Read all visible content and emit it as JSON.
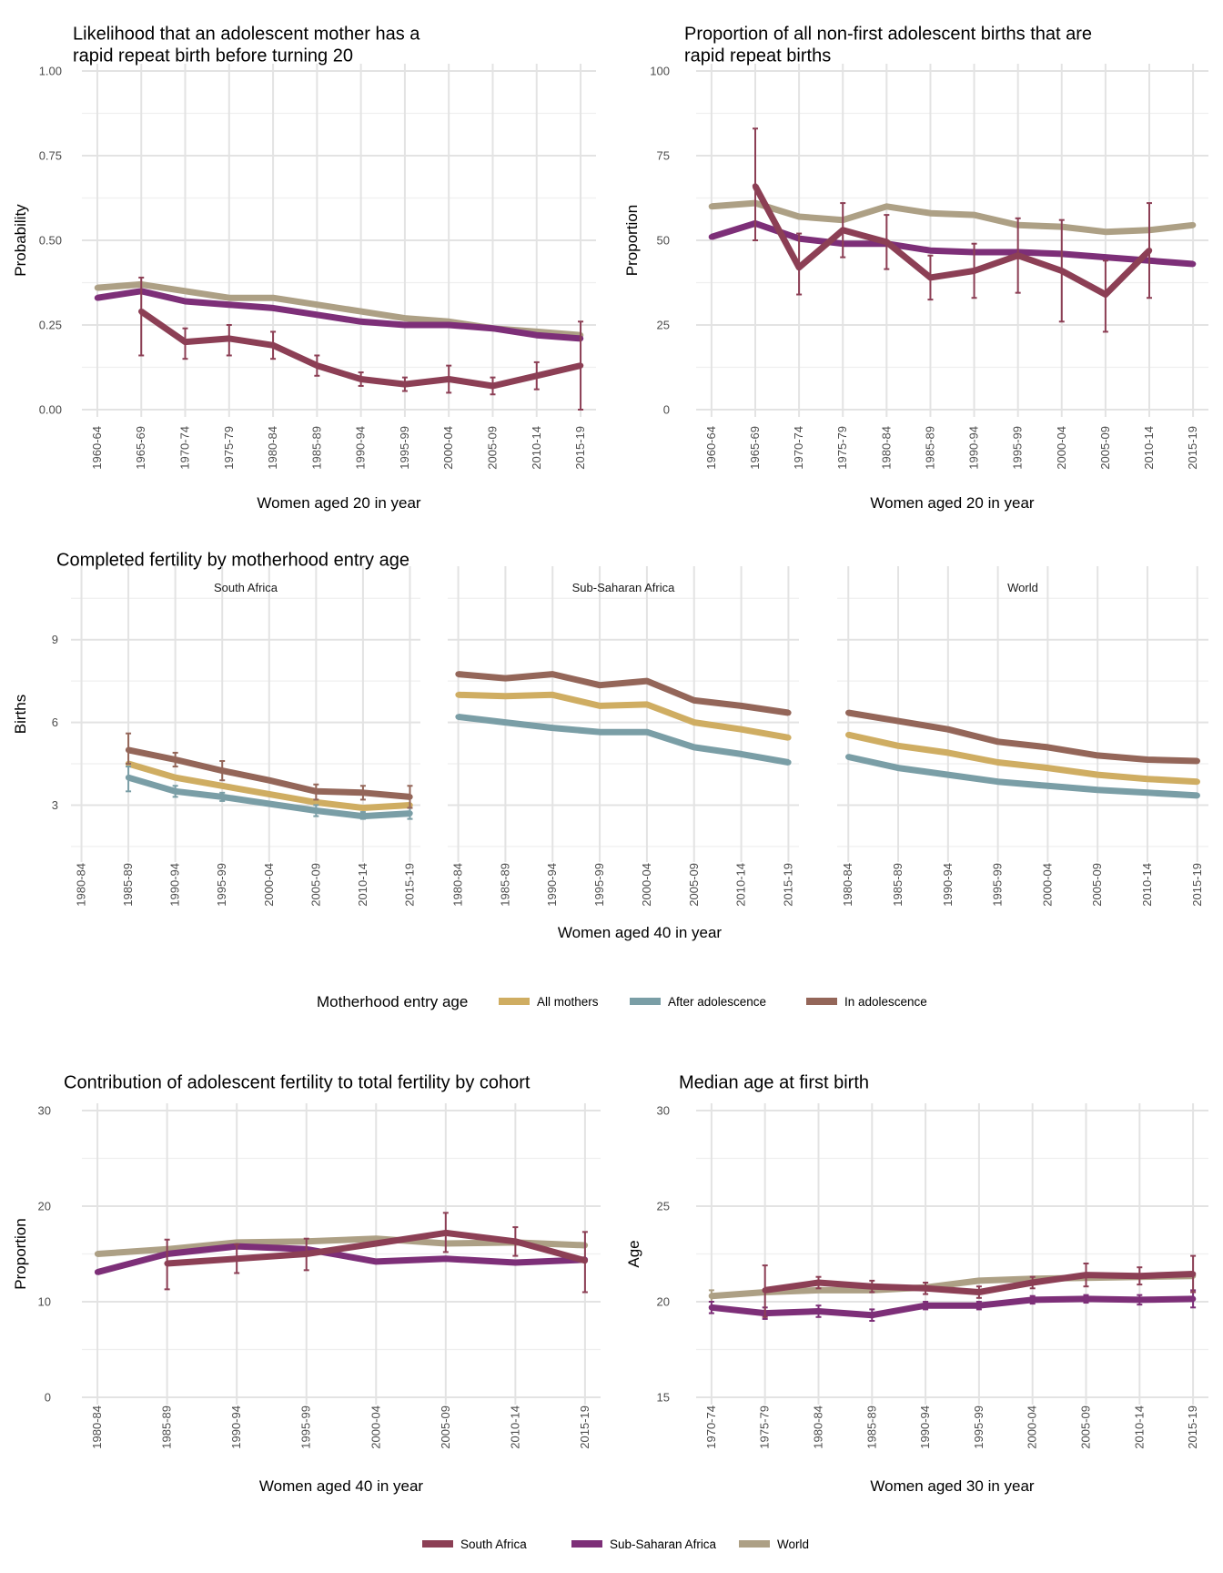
{
  "colors": {
    "south_africa": "#8c3f55",
    "sub_saharan_africa": "#7d2f78",
    "world": "#ada085",
    "all_mothers": "#cfad62",
    "after_adolescence": "#7a9ea6",
    "in_adolescence": "#946659"
  },
  "region_legend": {
    "items": [
      {
        "key": "south_africa",
        "label": "South Africa"
      },
      {
        "key": "sub_saharan_africa",
        "label": "Sub-Saharan Africa"
      },
      {
        "key": "world",
        "label": "World"
      }
    ]
  },
  "motherhood_legend": {
    "title": "Motherhood entry age",
    "items": [
      {
        "key": "all_mothers",
        "label": "All mothers"
      },
      {
        "key": "after_adolescence",
        "label": "After adolescence"
      },
      {
        "key": "in_adolescence",
        "label": "In adolescence"
      }
    ]
  },
  "chart_data": [
    {
      "id": "rapid_repeat_probability",
      "type": "line",
      "title": "Likelihood that an adolescent mother has a\nrapid repeat birth before turning 20",
      "xlabel": "Women aged 20 in year",
      "ylabel": "Probability",
      "ylim": [
        0,
        1
      ],
      "yticks": [
        "0.00",
        "0.25",
        "0.50",
        "0.75",
        "1.00"
      ],
      "ytick_values": [
        0,
        0.25,
        0.5,
        0.75,
        1
      ],
      "categories": [
        "1960-64",
        "1965-69",
        "1970-74",
        "1975-79",
        "1980-84",
        "1985-89",
        "1990-94",
        "1995-99",
        "2000-04",
        "2005-09",
        "2010-14",
        "2015-19"
      ],
      "grid": true,
      "series": [
        {
          "name": "World",
          "color_key": "world",
          "values": [
            0.36,
            0.37,
            0.35,
            0.33,
            0.33,
            0.31,
            0.29,
            0.27,
            0.26,
            0.24,
            0.23,
            0.22
          ]
        },
        {
          "name": "Sub-Saharan Africa",
          "color_key": "sub_saharan_africa",
          "values": [
            0.33,
            0.35,
            0.32,
            0.31,
            0.3,
            0.28,
            0.26,
            0.25,
            0.25,
            0.24,
            0.22,
            0.21
          ]
        },
        {
          "name": "South Africa",
          "color_key": "south_africa",
          "values": [
            null,
            0.29,
            0.2,
            0.21,
            0.19,
            0.13,
            0.09,
            0.075,
            0.09,
            0.07,
            0.1,
            0.13
          ],
          "error_low": [
            null,
            0.16,
            0.15,
            0.16,
            0.15,
            0.1,
            0.07,
            0.055,
            0.05,
            0.045,
            0.06,
            0.0
          ],
          "error_high": [
            null,
            0.39,
            0.24,
            0.25,
            0.23,
            0.16,
            0.11,
            0.095,
            0.13,
            0.095,
            0.14,
            0.26
          ]
        }
      ]
    },
    {
      "id": "rapid_repeat_proportion",
      "type": "line",
      "title": "Proportion of all non-first adolescent births that are\nrapid repeat births",
      "xlabel": "Women aged 20 in year",
      "ylabel": "Proportion",
      "ylim": [
        0,
        100
      ],
      "yticks": [
        "0",
        "25",
        "50",
        "75",
        "100"
      ],
      "ytick_values": [
        0,
        25,
        50,
        75,
        100
      ],
      "categories": [
        "1960-64",
        "1965-69",
        "1970-74",
        "1975-79",
        "1980-84",
        "1985-89",
        "1990-94",
        "1995-99",
        "2000-04",
        "2005-09",
        "2010-14",
        "2015-19"
      ],
      "grid": true,
      "series": [
        {
          "name": "World",
          "color_key": "world",
          "values": [
            60,
            61,
            57,
            56,
            60,
            58,
            57.5,
            54.5,
            54,
            52.5,
            53,
            54.5
          ]
        },
        {
          "name": "Sub-Saharan Africa",
          "color_key": "sub_saharan_africa",
          "values": [
            51,
            55,
            50.5,
            49,
            49,
            47,
            46.5,
            46.5,
            46,
            45,
            44,
            43
          ]
        },
        {
          "name": "South Africa",
          "color_key": "south_africa",
          "values": [
            null,
            66,
            42,
            53,
            49.5,
            39,
            41,
            45.5,
            41,
            34,
            47,
            null
          ],
          "error_low": [
            null,
            50,
            34,
            45,
            41.5,
            32.5,
            33,
            34.5,
            26,
            23,
            33,
            null
          ],
          "error_high": [
            null,
            83,
            52,
            61,
            57.5,
            45.5,
            49,
            56.5,
            56,
            44,
            61,
            null
          ]
        }
      ]
    },
    {
      "id": "completed_fertility",
      "type": "line",
      "title": "Completed fertility by motherhood entry age",
      "xlabel": "Women aged 40 in year",
      "ylabel": "Births",
      "ylim": [
        1.2,
        11.4
      ],
      "yticks": [
        "3",
        "6",
        "9"
      ],
      "ytick_values": [
        3,
        6,
        9
      ],
      "categories": [
        "1980-84",
        "1985-89",
        "1990-94",
        "1995-99",
        "2000-04",
        "2005-09",
        "2010-14",
        "2015-19"
      ],
      "grid": true,
      "legend": "bottom",
      "facets": [
        {
          "name": "South Africa",
          "series": [
            {
              "name": "All mothers",
              "color_key": "all_mothers",
              "values": [
                null,
                4.5,
                4.0,
                3.7,
                3.4,
                3.1,
                2.9,
                3.0
              ]
            },
            {
              "name": "After adolescence",
              "color_key": "after_adolescence",
              "values": [
                null,
                4.0,
                3.5,
                3.3,
                3.05,
                2.8,
                2.6,
                2.7
              ],
              "error_low": [
                null,
                3.5,
                3.3,
                3.15,
                null,
                2.6,
                2.5,
                2.5
              ],
              "error_high": [
                null,
                4.4,
                3.7,
                3.45,
                null,
                3.0,
                2.75,
                2.9
              ]
            },
            {
              "name": "In adolescence",
              "color_key": "in_adolescence",
              "values": [
                null,
                5.0,
                4.65,
                4.25,
                3.9,
                3.5,
                3.45,
                3.3
              ],
              "error_low": [
                null,
                4.5,
                4.4,
                3.9,
                null,
                3.2,
                3.2,
                2.9
              ],
              "error_high": [
                null,
                5.6,
                4.9,
                4.6,
                null,
                3.75,
                3.7,
                3.7
              ]
            }
          ]
        },
        {
          "name": "Sub-Saharan Africa",
          "series": [
            {
              "name": "All mothers",
              "color_key": "all_mothers",
              "values": [
                7.0,
                6.95,
                7.0,
                6.6,
                6.65,
                6.0,
                5.75,
                5.45
              ]
            },
            {
              "name": "After adolescence",
              "color_key": "after_adolescence",
              "values": [
                6.2,
                6.0,
                5.8,
                5.65,
                5.65,
                5.1,
                4.85,
                4.55
              ]
            },
            {
              "name": "In adolescence",
              "color_key": "in_adolescence",
              "values": [
                7.75,
                7.6,
                7.75,
                7.35,
                7.5,
                6.8,
                6.6,
                6.35
              ]
            }
          ]
        },
        {
          "name": "World",
          "series": [
            {
              "name": "All mothers",
              "color_key": "all_mothers",
              "values": [
                5.55,
                5.15,
                4.9,
                4.55,
                4.35,
                4.1,
                3.95,
                3.85
              ]
            },
            {
              "name": "After adolescence",
              "color_key": "after_adolescence",
              "values": [
                4.75,
                4.35,
                4.1,
                3.85,
                3.7,
                3.55,
                3.45,
                3.35
              ]
            },
            {
              "name": "In adolescence",
              "color_key": "in_adolescence",
              "values": [
                6.35,
                6.05,
                5.75,
                5.3,
                5.1,
                4.8,
                4.65,
                4.6
              ]
            }
          ]
        }
      ]
    },
    {
      "id": "adolescent_contribution",
      "type": "line",
      "title": "Contribution of adolescent fertility to total fertility by cohort",
      "xlabel": "Women aged 40 in year",
      "ylabel": "Proportion",
      "ylim": [
        0,
        30
      ],
      "yticks": [
        "0",
        "10",
        "20",
        "30"
      ],
      "ytick_values": [
        0,
        10,
        20,
        30
      ],
      "categories": [
        "1980-84",
        "1985-89",
        "1990-94",
        "1995-99",
        "2000-04",
        "2005-09",
        "2010-14",
        "2015-19"
      ],
      "grid": true,
      "series": [
        {
          "name": "World",
          "color_key": "world",
          "values": [
            15.0,
            15.5,
            16.2,
            16.3,
            16.6,
            16.1,
            16.2,
            15.9
          ]
        },
        {
          "name": "Sub-Saharan Africa",
          "color_key": "sub_saharan_africa",
          "values": [
            13.1,
            15.0,
            15.8,
            15.5,
            14.2,
            14.5,
            14.1,
            14.4
          ]
        },
        {
          "name": "South Africa",
          "color_key": "south_africa",
          "values": [
            null,
            14.0,
            14.5,
            15.0,
            16.1,
            17.2,
            16.3,
            14.3
          ],
          "error_low": [
            null,
            11.3,
            13.0,
            13.3,
            null,
            15.2,
            14.8,
            11.0
          ],
          "error_high": [
            null,
            16.5,
            16.0,
            16.6,
            null,
            19.3,
            17.8,
            17.3
          ]
        }
      ]
    },
    {
      "id": "median_age_first_birth",
      "type": "line",
      "title": "Median age at first birth",
      "xlabel": "Women aged 30 in year",
      "ylabel": "Age",
      "ylim": [
        15,
        30
      ],
      "yticks": [
        "15",
        "20",
        "25",
        "30"
      ],
      "ytick_values": [
        15,
        20,
        25,
        30
      ],
      "categories": [
        "1970-74",
        "1975-79",
        "1980-84",
        "1985-89",
        "1990-94",
        "1995-99",
        "2000-04",
        "2005-09",
        "2010-14",
        "2015-19"
      ],
      "grid": true,
      "series": [
        {
          "name": "World",
          "color_key": "world",
          "values": [
            20.3,
            20.5,
            20.6,
            20.6,
            20.75,
            21.1,
            21.2,
            21.25,
            21.3,
            21.35
          ],
          "error_low": [
            20.0,
            null,
            null,
            null,
            null,
            null,
            null,
            null,
            null,
            null
          ],
          "error_high": [
            20.6,
            null,
            null,
            null,
            null,
            null,
            null,
            null,
            null,
            null
          ]
        },
        {
          "name": "Sub-Saharan Africa",
          "color_key": "sub_saharan_africa",
          "values": [
            19.7,
            19.4,
            19.5,
            19.3,
            19.8,
            19.8,
            20.1,
            20.15,
            20.1,
            20.15
          ],
          "error_low": [
            19.4,
            19.1,
            19.2,
            19.0,
            19.6,
            19.6,
            19.9,
            19.95,
            19.85,
            19.7
          ],
          "error_high": [
            20.0,
            19.7,
            19.8,
            19.6,
            20.0,
            20.0,
            20.3,
            20.35,
            20.35,
            20.6
          ]
        },
        {
          "name": "South Africa",
          "color_key": "south_africa",
          "values": [
            null,
            20.6,
            21.0,
            20.8,
            20.7,
            20.5,
            21.0,
            21.4,
            21.35,
            21.45
          ],
          "error_low": [
            null,
            19.2,
            20.7,
            20.5,
            20.4,
            20.2,
            20.7,
            20.8,
            20.9,
            20.5
          ],
          "error_high": [
            null,
            21.9,
            21.3,
            21.1,
            21.0,
            20.8,
            21.3,
            22.0,
            21.8,
            22.4
          ]
        }
      ]
    }
  ]
}
